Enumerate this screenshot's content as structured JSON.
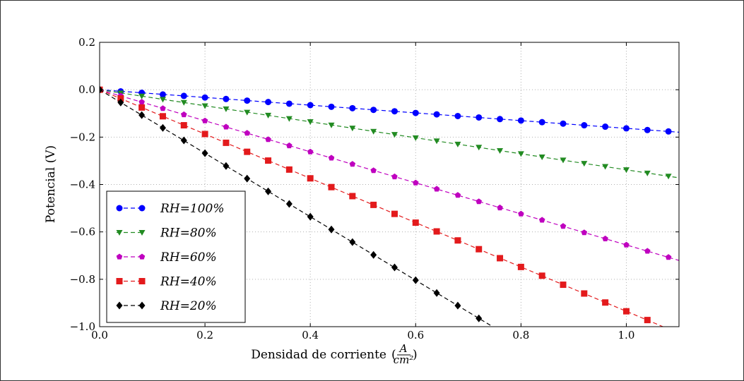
{
  "chart_data": {
    "type": "line",
    "xlabel": "Densidad de corriente",
    "xlabel_unit": {
      "numerator": "A",
      "denominator": "cm²"
    },
    "ylabel": "Potencial (V)",
    "xlim": [
      0.0,
      1.1
    ],
    "ylim": [
      -1.0,
      0.2
    ],
    "xticks": [
      0.0,
      0.2,
      0.4,
      0.6,
      0.8,
      1.0
    ],
    "xtick_labels": [
      "0.0",
      "0.2",
      "0.4",
      "0.6",
      "0.8",
      "1.0"
    ],
    "yticks": [
      0.2,
      0.0,
      -0.2,
      -0.4,
      -0.6,
      -0.8,
      -1.0
    ],
    "ytick_labels": [
      "0.2",
      "0.0",
      "−0.2",
      "−0.4",
      "−0.6",
      "−0.8",
      "−1.0"
    ],
    "grid": true,
    "legend_position": "lower-left",
    "series": [
      {
        "name": "RH=100%",
        "color": "#0000ff",
        "marker": "circle",
        "line_slope": -0.163,
        "x": [
          0.0,
          0.04,
          0.08,
          0.12,
          0.16,
          0.2,
          0.24,
          0.28,
          0.32,
          0.36,
          0.4,
          0.44,
          0.48,
          0.52,
          0.56,
          0.6,
          0.64,
          0.68,
          0.72,
          0.76,
          0.8,
          0.84,
          0.88,
          0.92,
          0.96,
          1.0,
          1.04,
          1.08
        ],
        "y": [
          0.0,
          -0.007,
          -0.013,
          -0.02,
          -0.026,
          -0.033,
          -0.039,
          -0.046,
          -0.052,
          -0.059,
          -0.065,
          -0.072,
          -0.078,
          -0.085,
          -0.091,
          -0.098,
          -0.104,
          -0.111,
          -0.117,
          -0.124,
          -0.13,
          -0.137,
          -0.143,
          -0.15,
          -0.156,
          -0.163,
          -0.17,
          -0.176
        ]
      },
      {
        "name": "RH=80%",
        "color": "#228b22",
        "marker": "triangle-down",
        "line_slope": -0.338,
        "x": [
          0.0,
          0.04,
          0.08,
          0.12,
          0.16,
          0.2,
          0.24,
          0.28,
          0.32,
          0.36,
          0.4,
          0.44,
          0.48,
          0.52,
          0.56,
          0.6,
          0.64,
          0.68,
          0.72,
          0.76,
          0.8,
          0.84,
          0.88,
          0.92,
          0.96,
          1.0,
          1.04,
          1.08
        ],
        "y": [
          0.0,
          -0.014,
          -0.027,
          -0.041,
          -0.054,
          -0.068,
          -0.081,
          -0.095,
          -0.108,
          -0.122,
          -0.135,
          -0.149,
          -0.162,
          -0.176,
          -0.189,
          -0.203,
          -0.216,
          -0.23,
          -0.243,
          -0.257,
          -0.27,
          -0.284,
          -0.297,
          -0.311,
          -0.324,
          -0.338,
          -0.352,
          -0.365
        ]
      },
      {
        "name": "RH=60%",
        "color": "#bf00bf",
        "marker": "pentagon",
        "line_slope": -0.655,
        "x": [
          0.0,
          0.04,
          0.08,
          0.12,
          0.16,
          0.2,
          0.24,
          0.28,
          0.32,
          0.36,
          0.4,
          0.44,
          0.48,
          0.52,
          0.56,
          0.6,
          0.64,
          0.68,
          0.72,
          0.76,
          0.8,
          0.84,
          0.88,
          0.92,
          0.96,
          1.0,
          1.04,
          1.08
        ],
        "y": [
          0.0,
          -0.026,
          -0.052,
          -0.079,
          -0.105,
          -0.131,
          -0.157,
          -0.183,
          -0.21,
          -0.236,
          -0.262,
          -0.288,
          -0.314,
          -0.341,
          -0.367,
          -0.393,
          -0.419,
          -0.445,
          -0.472,
          -0.498,
          -0.524,
          -0.55,
          -0.576,
          -0.603,
          -0.629,
          -0.655,
          -0.681,
          -0.707
        ]
      },
      {
        "name": "RH=40%",
        "color": "#e31a1c",
        "marker": "square",
        "line_slope": -0.935,
        "x": [
          0.0,
          0.04,
          0.08,
          0.12,
          0.16,
          0.2,
          0.24,
          0.28,
          0.32,
          0.36,
          0.4,
          0.44,
          0.48,
          0.52,
          0.56,
          0.6,
          0.64,
          0.68,
          0.72,
          0.76,
          0.8,
          0.84,
          0.88,
          0.92,
          0.96,
          1.0,
          1.04
        ],
        "y": [
          0.0,
          -0.037,
          -0.075,
          -0.112,
          -0.15,
          -0.187,
          -0.224,
          -0.262,
          -0.299,
          -0.337,
          -0.374,
          -0.411,
          -0.449,
          -0.486,
          -0.524,
          -0.561,
          -0.598,
          -0.636,
          -0.673,
          -0.711,
          -0.748,
          -0.785,
          -0.823,
          -0.86,
          -0.898,
          -0.935,
          -0.972
        ]
      },
      {
        "name": "RH=20%",
        "color": "#000000",
        "marker": "diamond",
        "line_slope": -1.34,
        "x": [
          0.0,
          0.04,
          0.08,
          0.12,
          0.16,
          0.2,
          0.24,
          0.28,
          0.32,
          0.36,
          0.4,
          0.44,
          0.48,
          0.52,
          0.56,
          0.6,
          0.64,
          0.68,
          0.72
        ],
        "y": [
          0.0,
          -0.054,
          -0.107,
          -0.161,
          -0.214,
          -0.268,
          -0.322,
          -0.375,
          -0.429,
          -0.482,
          -0.536,
          -0.59,
          -0.643,
          -0.697,
          -0.75,
          -0.804,
          -0.858,
          -0.911,
          -0.965
        ]
      }
    ]
  }
}
